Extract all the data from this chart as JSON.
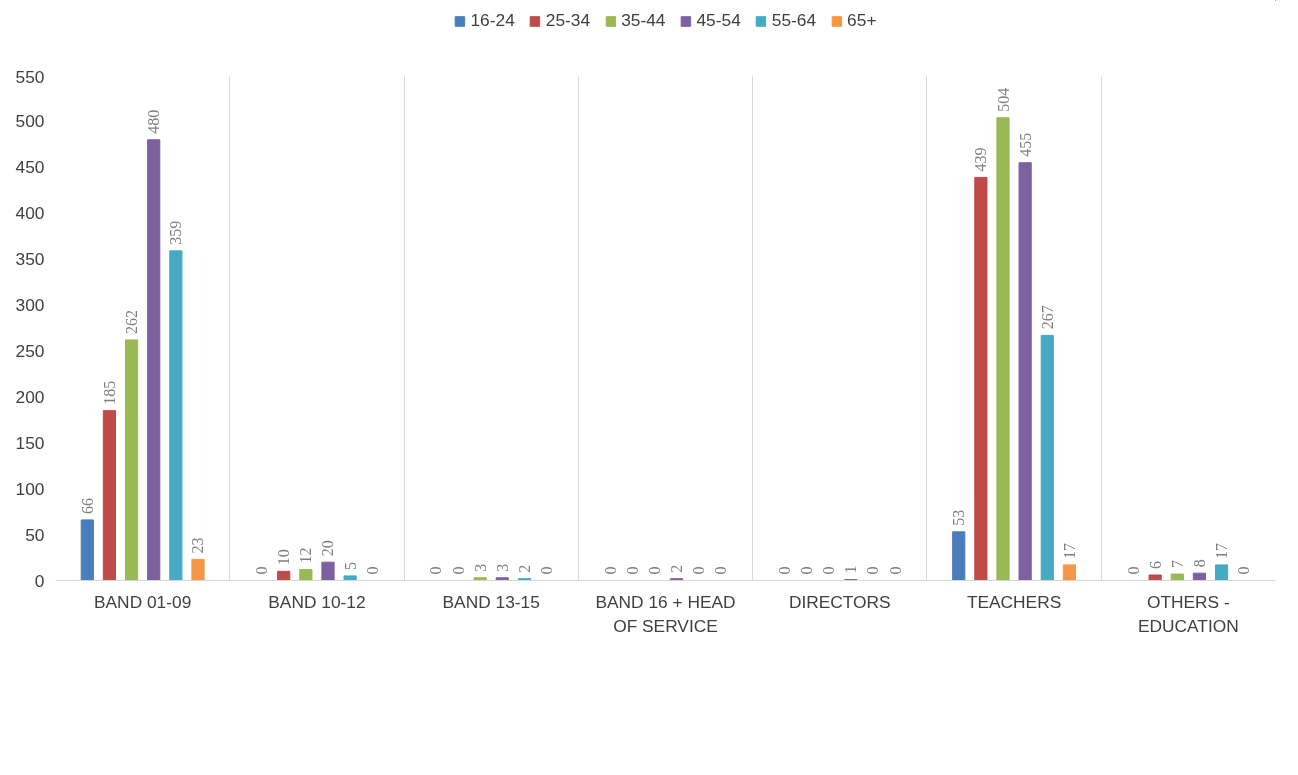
{
  "chart_data": {
    "type": "bar",
    "categories": [
      "BAND 01-09",
      "BAND 10-12",
      "BAND 13-15",
      "BAND 16 + HEAD OF SERVICE",
      "DIRECTORS",
      "TEACHERS",
      "OTHERS - EDUCATION"
    ],
    "series": [
      {
        "name": "16-24",
        "color": "#4a7ebb",
        "values": [
          66,
          0,
          0,
          0,
          0,
          53,
          0
        ]
      },
      {
        "name": "25-34",
        "color": "#be4b48",
        "values": [
          185,
          10,
          0,
          0,
          0,
          439,
          6
        ]
      },
      {
        "name": "35-44",
        "color": "#98b954",
        "values": [
          262,
          12,
          3,
          0,
          0,
          504,
          7
        ]
      },
      {
        "name": "45-54",
        "color": "#7d60a0",
        "values": [
          480,
          20,
          3,
          2,
          1,
          455,
          8
        ]
      },
      {
        "name": "55-64",
        "color": "#46aac5",
        "values": [
          359,
          5,
          2,
          0,
          0,
          267,
          17
        ]
      },
      {
        "name": "65+",
        "color": "#f79646",
        "values": [
          23,
          0,
          0,
          0,
          0,
          17,
          0
        ]
      }
    ],
    "ylim": [
      0,
      550
    ],
    "yticks": [
      0,
      50,
      100,
      150,
      200,
      250,
      300,
      350,
      400,
      450,
      500,
      550
    ],
    "grid": "x",
    "legend": "top",
    "data_labels": true
  }
}
